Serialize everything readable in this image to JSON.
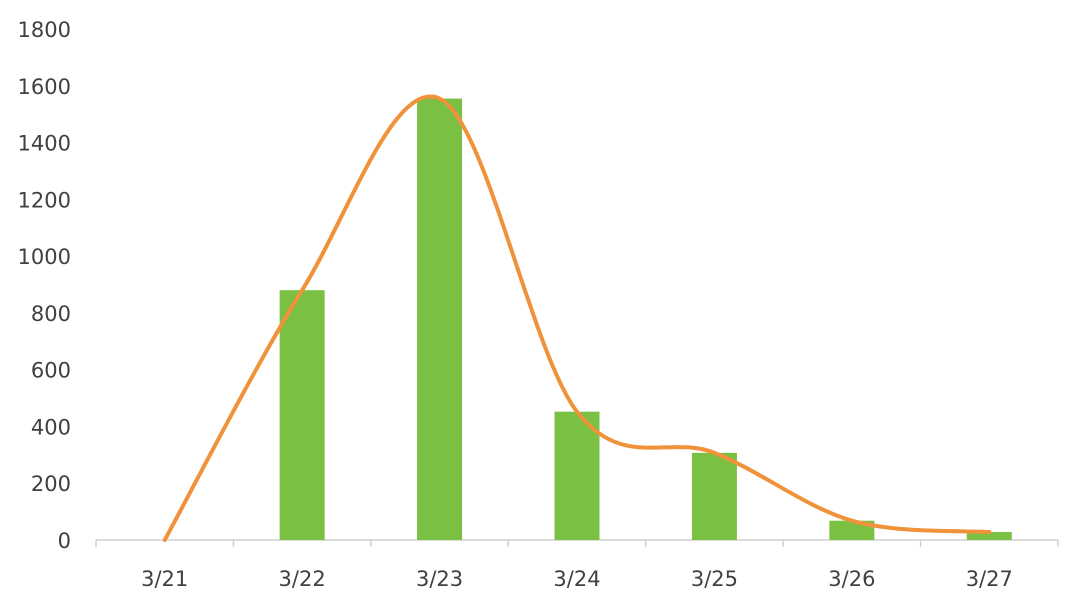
{
  "chart_data": {
    "type": "bar",
    "categories": [
      "3/21",
      "3/22",
      "3/23",
      "3/24",
      "3/25",
      "3/26",
      "3/27"
    ],
    "series": [
      {
        "type": "bar",
        "values": [
          0,
          880,
          1555,
          452,
          307,
          68,
          28
        ],
        "color": "#7AC143"
      },
      {
        "type": "line",
        "smooth": true,
        "values": [
          0,
          880,
          1555,
          452,
          307,
          68,
          28
        ],
        "color": "#F0923A"
      }
    ],
    "yticks": [
      "0",
      "200",
      "400",
      "600",
      "800",
      "1000",
      "1200",
      "1400",
      "1600",
      "1800"
    ],
    "ylim": [
      0,
      1800
    ],
    "grid": false,
    "legend": "none"
  }
}
